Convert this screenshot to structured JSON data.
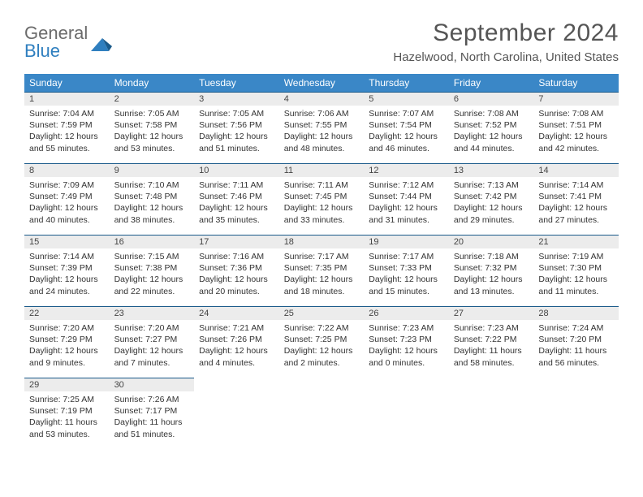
{
  "logo": {
    "line1": "General",
    "line2": "Blue",
    "icon_color": "#2f7fbf",
    "text_gray": "#6b6b6b"
  },
  "title": "September 2024",
  "location": "Hazelwood, North Carolina, United States",
  "header_bg": "#3a87c7",
  "daynum_bg": "#ececec",
  "daynum_border": "#1a5a8a",
  "weekdays": [
    "Sunday",
    "Monday",
    "Tuesday",
    "Wednesday",
    "Thursday",
    "Friday",
    "Saturday"
  ],
  "weeks": [
    [
      {
        "n": "1",
        "sr": "7:04 AM",
        "ss": "7:59 PM",
        "dl": "12 hours and 55 minutes."
      },
      {
        "n": "2",
        "sr": "7:05 AM",
        "ss": "7:58 PM",
        "dl": "12 hours and 53 minutes."
      },
      {
        "n": "3",
        "sr": "7:05 AM",
        "ss": "7:56 PM",
        "dl": "12 hours and 51 minutes."
      },
      {
        "n": "4",
        "sr": "7:06 AM",
        "ss": "7:55 PM",
        "dl": "12 hours and 48 minutes."
      },
      {
        "n": "5",
        "sr": "7:07 AM",
        "ss": "7:54 PM",
        "dl": "12 hours and 46 minutes."
      },
      {
        "n": "6",
        "sr": "7:08 AM",
        "ss": "7:52 PM",
        "dl": "12 hours and 44 minutes."
      },
      {
        "n": "7",
        "sr": "7:08 AM",
        "ss": "7:51 PM",
        "dl": "12 hours and 42 minutes."
      }
    ],
    [
      {
        "n": "8",
        "sr": "7:09 AM",
        "ss": "7:49 PM",
        "dl": "12 hours and 40 minutes."
      },
      {
        "n": "9",
        "sr": "7:10 AM",
        "ss": "7:48 PM",
        "dl": "12 hours and 38 minutes."
      },
      {
        "n": "10",
        "sr": "7:11 AM",
        "ss": "7:46 PM",
        "dl": "12 hours and 35 minutes."
      },
      {
        "n": "11",
        "sr": "7:11 AM",
        "ss": "7:45 PM",
        "dl": "12 hours and 33 minutes."
      },
      {
        "n": "12",
        "sr": "7:12 AM",
        "ss": "7:44 PM",
        "dl": "12 hours and 31 minutes."
      },
      {
        "n": "13",
        "sr": "7:13 AM",
        "ss": "7:42 PM",
        "dl": "12 hours and 29 minutes."
      },
      {
        "n": "14",
        "sr": "7:14 AM",
        "ss": "7:41 PM",
        "dl": "12 hours and 27 minutes."
      }
    ],
    [
      {
        "n": "15",
        "sr": "7:14 AM",
        "ss": "7:39 PM",
        "dl": "12 hours and 24 minutes."
      },
      {
        "n": "16",
        "sr": "7:15 AM",
        "ss": "7:38 PM",
        "dl": "12 hours and 22 minutes."
      },
      {
        "n": "17",
        "sr": "7:16 AM",
        "ss": "7:36 PM",
        "dl": "12 hours and 20 minutes."
      },
      {
        "n": "18",
        "sr": "7:17 AM",
        "ss": "7:35 PM",
        "dl": "12 hours and 18 minutes."
      },
      {
        "n": "19",
        "sr": "7:17 AM",
        "ss": "7:33 PM",
        "dl": "12 hours and 15 minutes."
      },
      {
        "n": "20",
        "sr": "7:18 AM",
        "ss": "7:32 PM",
        "dl": "12 hours and 13 minutes."
      },
      {
        "n": "21",
        "sr": "7:19 AM",
        "ss": "7:30 PM",
        "dl": "12 hours and 11 minutes."
      }
    ],
    [
      {
        "n": "22",
        "sr": "7:20 AM",
        "ss": "7:29 PM",
        "dl": "12 hours and 9 minutes."
      },
      {
        "n": "23",
        "sr": "7:20 AM",
        "ss": "7:27 PM",
        "dl": "12 hours and 7 minutes."
      },
      {
        "n": "24",
        "sr": "7:21 AM",
        "ss": "7:26 PM",
        "dl": "12 hours and 4 minutes."
      },
      {
        "n": "25",
        "sr": "7:22 AM",
        "ss": "7:25 PM",
        "dl": "12 hours and 2 minutes."
      },
      {
        "n": "26",
        "sr": "7:23 AM",
        "ss": "7:23 PM",
        "dl": "12 hours and 0 minutes."
      },
      {
        "n": "27",
        "sr": "7:23 AM",
        "ss": "7:22 PM",
        "dl": "11 hours and 58 minutes."
      },
      {
        "n": "28",
        "sr": "7:24 AM",
        "ss": "7:20 PM",
        "dl": "11 hours and 56 minutes."
      }
    ],
    [
      {
        "n": "29",
        "sr": "7:25 AM",
        "ss": "7:19 PM",
        "dl": "11 hours and 53 minutes."
      },
      {
        "n": "30",
        "sr": "7:26 AM",
        "ss": "7:17 PM",
        "dl": "11 hours and 51 minutes."
      },
      null,
      null,
      null,
      null,
      null
    ]
  ],
  "labels": {
    "sunrise": "Sunrise: ",
    "sunset": "Sunset: ",
    "daylight": "Daylight: "
  }
}
